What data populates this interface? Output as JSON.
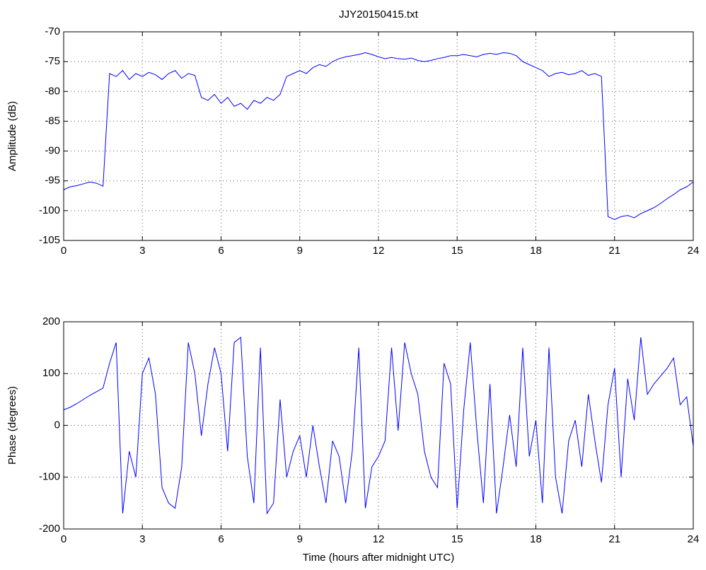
{
  "chart_data": [
    {
      "type": "line",
      "title": "JJY20150415.txt",
      "ylabel": "Amplitude (dB)",
      "x": [
        0,
        0.25,
        0.5,
        0.75,
        1,
        1.25,
        1.5,
        1.75,
        2,
        2.25,
        2.5,
        2.75,
        3,
        3.25,
        3.5,
        3.75,
        4,
        4.25,
        4.5,
        4.75,
        5,
        5.25,
        5.5,
        5.75,
        6,
        6.25,
        6.5,
        6.75,
        7,
        7.25,
        7.5,
        7.75,
        8,
        8.25,
        8.5,
        8.75,
        9,
        9.25,
        9.5,
        9.75,
        10,
        10.25,
        10.5,
        10.75,
        11,
        11.25,
        11.5,
        11.75,
        12,
        12.25,
        12.5,
        12.75,
        13,
        13.25,
        13.5,
        13.75,
        14,
        14.25,
        14.5,
        14.75,
        15,
        15.25,
        15.5,
        15.75,
        16,
        16.25,
        16.5,
        16.75,
        17,
        17.25,
        17.5,
        17.75,
        18,
        18.25,
        18.5,
        18.75,
        19,
        19.25,
        19.5,
        19.75,
        20,
        20.25,
        20.5,
        20.75,
        21,
        21.25,
        21.5,
        21.75,
        22,
        22.25,
        22.5,
        22.75,
        23,
        23.25,
        23.5,
        23.75,
        24
      ],
      "series": [
        {
          "name": "Amplitude",
          "color": "#0000ff",
          "values": [
            -96.5,
            -96,
            -95.8,
            -95.5,
            -95.2,
            -95.4,
            -95.9,
            -77,
            -77.5,
            -76.5,
            -78,
            -77,
            -77.5,
            -76.8,
            -77.2,
            -78,
            -77,
            -76.5,
            -77.8,
            -77,
            -77.3,
            -81,
            -81.5,
            -80.5,
            -82,
            -81,
            -82.5,
            -82,
            -83,
            -81.5,
            -82,
            -81,
            -81.5,
            -80.5,
            -77.5,
            -77,
            -76.5,
            -77,
            -76,
            -75.5,
            -75.8,
            -75,
            -74.5,
            -74.2,
            -74,
            -73.8,
            -73.5,
            -73.8,
            -74.2,
            -74.5,
            -74.3,
            -74.5,
            -74.6,
            -74.4,
            -74.8,
            -75,
            -74.8,
            -74.5,
            -74.3,
            -74,
            -74,
            -73.8,
            -74,
            -74.2,
            -73.8,
            -73.6,
            -73.8,
            -73.5,
            -73.6,
            -74,
            -75,
            -75.5,
            -76,
            -76.5,
            -77.5,
            -77,
            -76.8,
            -77.2,
            -77,
            -76.5,
            -77.3,
            -77,
            -77.5,
            -101,
            -101.5,
            -101,
            -100.8,
            -101.2,
            -100.5,
            -100,
            -99.5,
            -98.8,
            -98,
            -97.3,
            -96.5,
            -96,
            -95.2
          ]
        }
      ],
      "xlim": [
        0,
        24
      ],
      "xticks": [
        0,
        3,
        6,
        9,
        12,
        15,
        18,
        21,
        24
      ],
      "ylim": [
        -105,
        -70
      ],
      "yticks": [
        -105,
        -100,
        -95,
        -90,
        -85,
        -80,
        -75,
        -70
      ],
      "grid": true
    },
    {
      "type": "line",
      "ylabel": "Phase (degrees)",
      "xlabel": "Time (hours after midnight UTC)",
      "x": [
        0,
        0.25,
        0.5,
        0.75,
        1,
        1.25,
        1.5,
        1.75,
        2,
        2.25,
        2.5,
        2.75,
        3,
        3.25,
        3.5,
        3.75,
        4,
        4.25,
        4.5,
        4.75,
        5,
        5.25,
        5.5,
        5.75,
        6,
        6.25,
        6.5,
        6.75,
        7,
        7.25,
        7.5,
        7.75,
        8,
        8.25,
        8.5,
        8.75,
        9,
        9.25,
        9.5,
        9.75,
        10,
        10.25,
        10.5,
        10.75,
        11,
        11.25,
        11.5,
        11.75,
        12,
        12.25,
        12.5,
        12.75,
        13,
        13.25,
        13.5,
        13.75,
        14,
        14.25,
        14.5,
        14.75,
        15,
        15.25,
        15.5,
        15.75,
        16,
        16.25,
        16.5,
        16.75,
        17,
        17.25,
        17.5,
        17.75,
        18,
        18.25,
        18.5,
        18.75,
        19,
        19.25,
        19.5,
        19.75,
        20,
        20.25,
        20.5,
        20.75,
        21,
        21.25,
        21.5,
        21.75,
        22,
        22.25,
        22.5,
        22.75,
        23,
        23.25,
        23.5,
        23.75,
        24
      ],
      "series": [
        {
          "name": "Phase",
          "color": "#0000ff",
          "values": [
            30,
            35,
            42,
            50,
            58,
            65,
            72,
            120,
            160,
            -170,
            -50,
            -100,
            100,
            130,
            60,
            -120,
            -150,
            -160,
            -80,
            160,
            100,
            -20,
            80,
            150,
            100,
            -50,
            160,
            170,
            -60,
            -150,
            150,
            -170,
            -150,
            50,
            -100,
            -50,
            -20,
            -100,
            0,
            -80,
            -150,
            -30,
            -60,
            -150,
            -50,
            150,
            -160,
            -80,
            -60,
            -30,
            150,
            -10,
            160,
            100,
            60,
            -50,
            -100,
            -120,
            120,
            80,
            -160,
            30,
            160,
            -10,
            -150,
            80,
            -170,
            -80,
            20,
            -80,
            150,
            -60,
            10,
            -150,
            150,
            -100,
            -170,
            -30,
            10,
            -80,
            60,
            -30,
            -110,
            40,
            110,
            -100,
            90,
            10,
            170,
            60,
            80,
            95,
            110,
            130,
            40,
            55,
            -40
          ]
        }
      ],
      "xlim": [
        0,
        24
      ],
      "xticks": [
        0,
        3,
        6,
        9,
        12,
        15,
        18,
        21,
        24
      ],
      "ylim": [
        -200,
        200
      ],
      "yticks": [
        -200,
        -100,
        0,
        100,
        200
      ],
      "grid": true
    }
  ]
}
